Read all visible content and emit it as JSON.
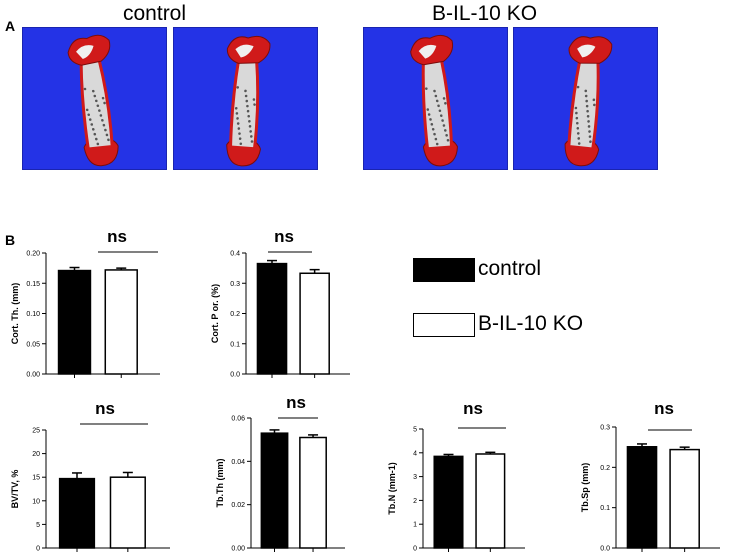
{
  "panel_a": {
    "label": "A",
    "groups": [
      {
        "title": "control",
        "scans": [
          "scan-1",
          "scan-2"
        ]
      },
      {
        "title": "B-IL-10 KO",
        "scans": [
          "scan-3",
          "scan-4"
        ]
      }
    ],
    "colors": {
      "background": "#2433e6",
      "bone": "#d9d9d9",
      "highlight": "#d01a1a"
    }
  },
  "panel_b": {
    "label": "B",
    "legend": [
      {
        "name": "control",
        "fill": "#000000"
      },
      {
        "name": "B-IL-10 KO",
        "fill": "#ffffff"
      }
    ]
  },
  "chart_data": [
    {
      "type": "bar",
      "ylabel": "Cort. Th. (mm)",
      "ylim": [
        0,
        0.2
      ],
      "yticks": [
        "0.00",
        "0.05",
        "0.10",
        "0.15",
        "0.20"
      ],
      "categories": [
        "control",
        "B-IL-10 KO"
      ],
      "values": [
        0.171,
        0.172
      ],
      "errors": [
        0.005,
        0.003
      ],
      "annotation": "ns"
    },
    {
      "type": "bar",
      "ylabel": "Cort. P or. (%)",
      "ylim": [
        0,
        0.4
      ],
      "yticks": [
        "0.0",
        "0.1",
        "0.2",
        "0.3",
        "0.4"
      ],
      "categories": [
        "control",
        "B-IL-10 KO"
      ],
      "values": [
        0.365,
        0.333
      ],
      "errors": [
        0.01,
        0.012
      ],
      "annotation": "ns"
    },
    {
      "type": "bar",
      "ylabel": "BV/TV, %",
      "ylim": [
        0,
        25
      ],
      "yticks": [
        "0",
        "5",
        "10",
        "15",
        "20",
        "25"
      ],
      "categories": [
        "control",
        "B-IL-10 KO"
      ],
      "values": [
        14.7,
        15.0
      ],
      "errors": [
        1.2,
        1.0
      ],
      "annotation": "ns"
    },
    {
      "type": "bar",
      "ylabel": "Tb.Th (mm)",
      "ylim": [
        0,
        0.06
      ],
      "yticks": [
        "0.00",
        "0.02",
        "0.04",
        "0.06"
      ],
      "categories": [
        "control",
        "B-IL-10 KO"
      ],
      "values": [
        0.053,
        0.051
      ],
      "errors": [
        0.0015,
        0.0012
      ],
      "annotation": "ns"
    },
    {
      "type": "bar",
      "ylabel": "Tb.N (mm-1)",
      "ylim": [
        0,
        5
      ],
      "yticks": [
        "0",
        "1",
        "2",
        "3",
        "4",
        "5"
      ],
      "categories": [
        "control",
        "B-IL-10 KO"
      ],
      "values": [
        3.85,
        3.95
      ],
      "errors": [
        0.08,
        0.07
      ],
      "annotation": "ns"
    },
    {
      "type": "bar",
      "ylabel": "Tb.Sp (mm)",
      "ylim": [
        0,
        0.3
      ],
      "yticks": [
        "0.0",
        "0.1",
        "0.2",
        "0.3"
      ],
      "categories": [
        "control",
        "B-IL-10 KO"
      ],
      "values": [
        0.251,
        0.244
      ],
      "errors": [
        0.007,
        0.006
      ],
      "annotation": "ns"
    }
  ]
}
